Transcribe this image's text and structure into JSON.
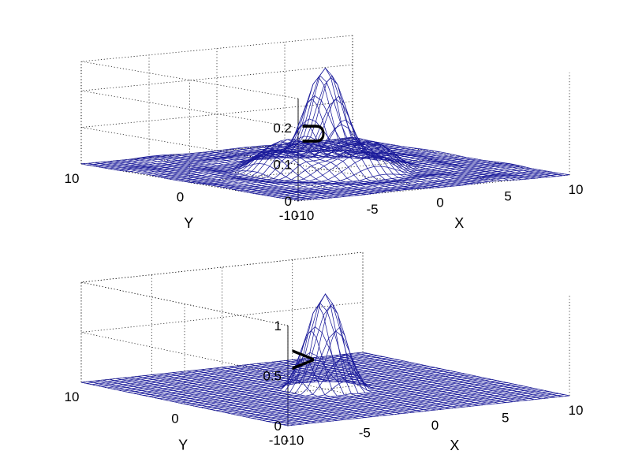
{
  "chart_data": [
    {
      "type": "surface",
      "zlabel": "U",
      "xlabel": "X",
      "ylabel": "Y",
      "xlim": [
        -10,
        10
      ],
      "ylim": [
        -10,
        10
      ],
      "zlim": [
        0,
        0.28
      ],
      "x_ticks": [
        "-10",
        "-5",
        "0",
        "5",
        "10"
      ],
      "y_ticks": [
        "-10",
        "0",
        "10"
      ],
      "z_ticks": [
        "0",
        "0.1",
        "0.2"
      ],
      "peak_value": 0.27,
      "grid": true,
      "mesh_color": "#1a1a9a"
    },
    {
      "type": "surface",
      "zlabel": "V",
      "xlabel": "X",
      "ylabel": "Y",
      "xlim": [
        -10,
        10
      ],
      "ylim": [
        -10,
        10
      ],
      "zlim": [
        0,
        1
      ],
      "x_ticks": [
        "-10",
        "-5",
        "0",
        "5",
        "10"
      ],
      "y_ticks": [
        "-10",
        "0",
        "10"
      ],
      "z_ticks": [
        "0",
        "0.5",
        "1"
      ],
      "peak_value": 0.95,
      "grid": true,
      "mesh_color": "#1a1a9a"
    }
  ]
}
